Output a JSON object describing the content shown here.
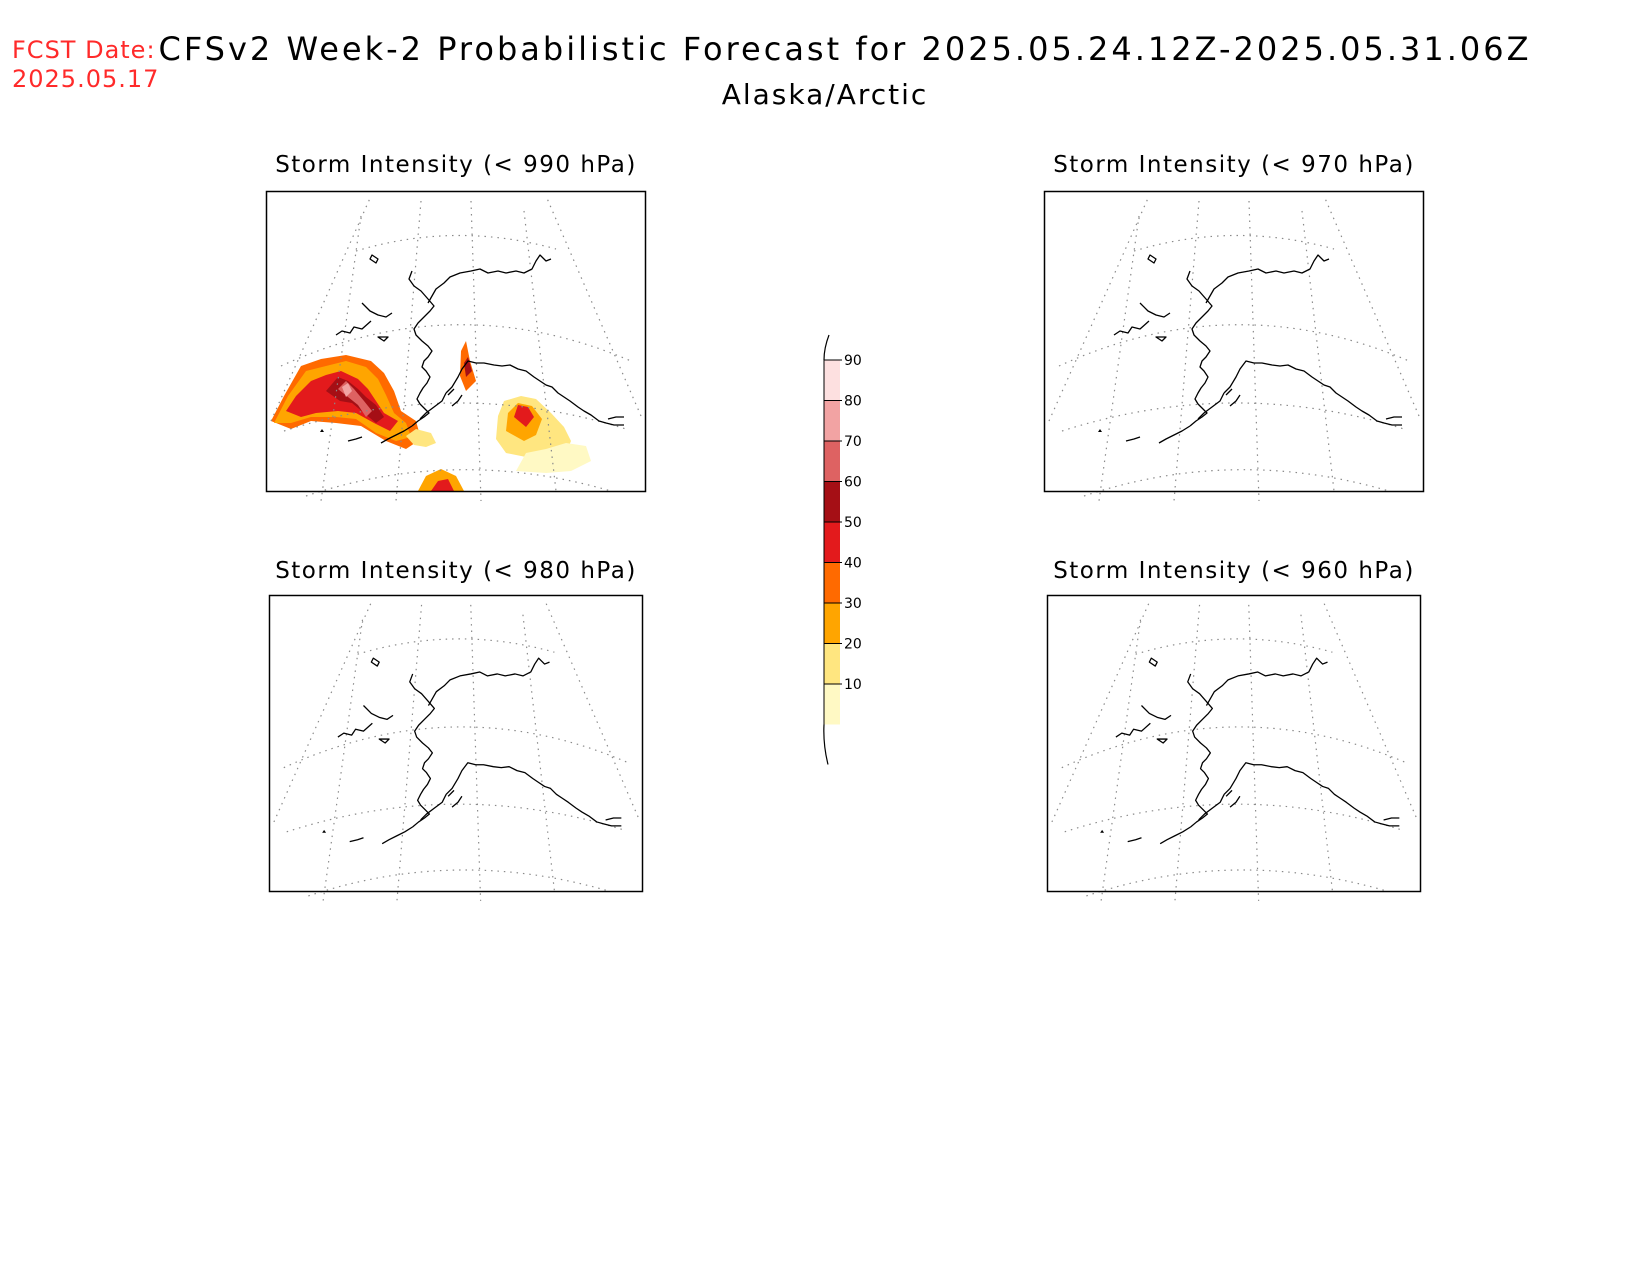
{
  "header": {
    "fcst_label": "FCST Date:",
    "fcst_date": "2025.05.17",
    "title": "CFSv2 Week-2 Probabilistic Forecast for 2025.05.24.12Z-2025.05.31.06Z",
    "subtitle": "Alaska/Arctic"
  },
  "panels": [
    {
      "title": "Storm Intensity (< 990 hPa)",
      "has_data": true
    },
    {
      "title": "Storm Intensity (< 970 hPa)",
      "has_data": false
    },
    {
      "title": "Storm Intensity (< 980 hPa)",
      "has_data": false
    },
    {
      "title": "Storm Intensity (< 960 hPa)",
      "has_data": false
    }
  ],
  "colorbar": {
    "ticks": [
      "10",
      "20",
      "30",
      "40",
      "50",
      "60",
      "70",
      "80",
      "90"
    ],
    "colors": [
      "#fff9c4",
      "#ffe680",
      "#ffa500",
      "#ff6a00",
      "#e31a1c",
      "#a50f15",
      "#de6262",
      "#f2a3a3",
      "#fde0e0"
    ]
  }
}
